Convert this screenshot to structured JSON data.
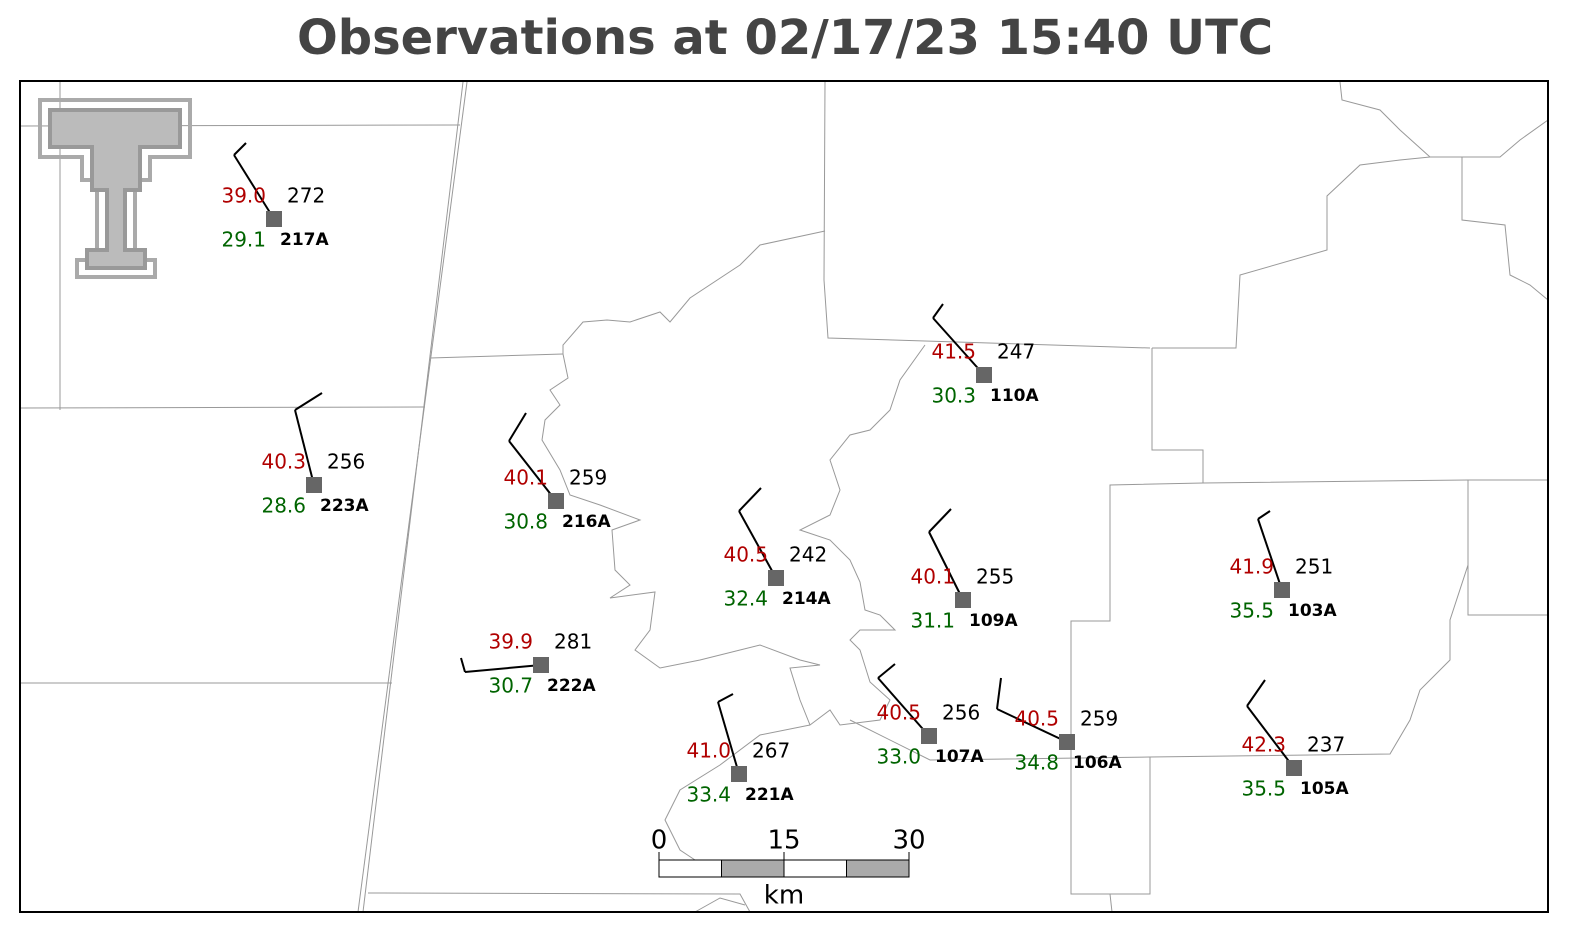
{
  "title": "Observations at 02/17/23 15:40 UTC",
  "stations": [
    {
      "id": "217A",
      "temperature": "39.0",
      "dewpoint": "29.1",
      "value": "272"
    },
    {
      "id": "223A",
      "temperature": "40.3",
      "dewpoint": "28.6",
      "value": "256"
    },
    {
      "id": "216A",
      "temperature": "40.1",
      "dewpoint": "30.8",
      "value": "259"
    },
    {
      "id": "214A",
      "temperature": "40.5",
      "dewpoint": "32.4",
      "value": "242"
    },
    {
      "id": "222A",
      "temperature": "39.9",
      "dewpoint": "30.7",
      "value": "281"
    },
    {
      "id": "221A",
      "temperature": "41.0",
      "dewpoint": "33.4",
      "value": "267"
    },
    {
      "id": "110A",
      "temperature": "41.5",
      "dewpoint": "30.3",
      "value": "247"
    },
    {
      "id": "109A",
      "temperature": "40.1",
      "dewpoint": "31.1",
      "value": "255"
    },
    {
      "id": "107A",
      "temperature": "40.5",
      "dewpoint": "33.0",
      "value": "256"
    },
    {
      "id": "106A",
      "temperature": "40.5",
      "dewpoint": "34.8",
      "value": "259"
    },
    {
      "id": "103A",
      "temperature": "41.9",
      "dewpoint": "35.5",
      "value": "251"
    },
    {
      "id": "105A",
      "temperature": "42.3",
      "dewpoint": "35.5",
      "value": "237"
    }
  ],
  "scale_bar": {
    "ticks": [
      0,
      15,
      30
    ],
    "unit": "km"
  }
}
